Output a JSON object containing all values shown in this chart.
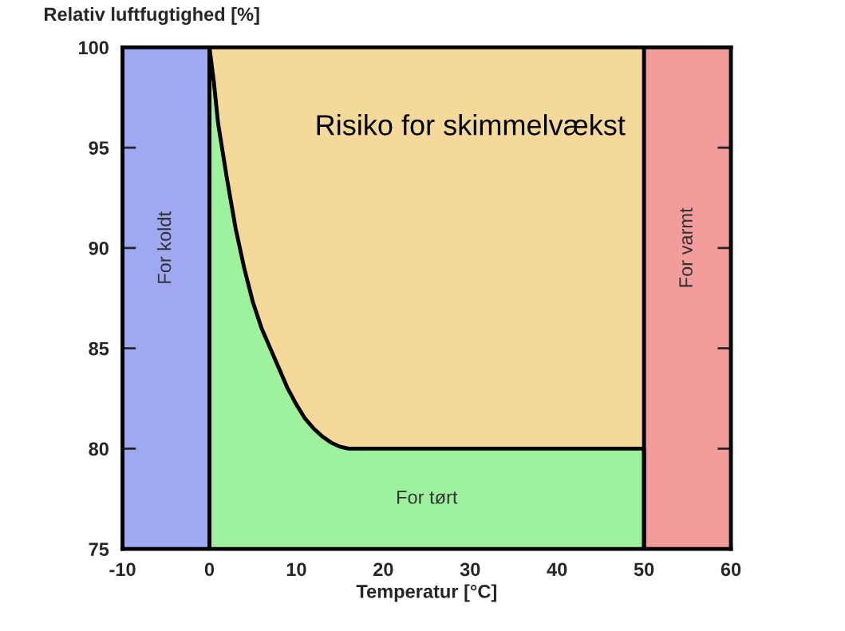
{
  "chart_data": {
    "type": "area",
    "xlabel": "Temperatur [°C]",
    "ylabel": "Relativ luftfugtighed [%]",
    "xlim": [
      -10,
      60
    ],
    "xticks": [
      -10,
      0,
      10,
      20,
      30,
      40,
      50,
      60
    ],
    "ylim": [
      75,
      100
    ],
    "yticks": [
      75,
      80,
      85,
      90,
      95,
      100
    ],
    "grid": false,
    "legend": false,
    "bands": [
      {
        "axis": "x",
        "from": -10,
        "to": 0,
        "label": "For koldt",
        "color": "#9ea9f2"
      },
      {
        "axis": "x",
        "from": 0,
        "to": 50,
        "label": "Risiko for skimmelvækst",
        "color": "#f5d99a"
      },
      {
        "axis": "x",
        "from": 50,
        "to": 60,
        "label": "For varmt",
        "color": "#f29c9c"
      }
    ],
    "ref_lines": [
      {
        "axis": "x",
        "value": 0,
        "color": "#000000"
      },
      {
        "axis": "x",
        "value": 50,
        "color": "#000000"
      }
    ],
    "series": [
      {
        "name": "For tørt",
        "color": "#9ef29e",
        "x": [
          0,
          0.5,
          1,
          2,
          3,
          4,
          5,
          6,
          7,
          8,
          9,
          10,
          11,
          12,
          13,
          14,
          15,
          16,
          50
        ],
        "values": [
          100,
          98.3,
          96.2,
          93.5,
          91,
          89,
          87.3,
          86,
          85,
          84,
          83,
          82.2,
          81.5,
          81,
          80.6,
          80.3,
          80.1,
          80,
          80
        ]
      }
    ]
  }
}
